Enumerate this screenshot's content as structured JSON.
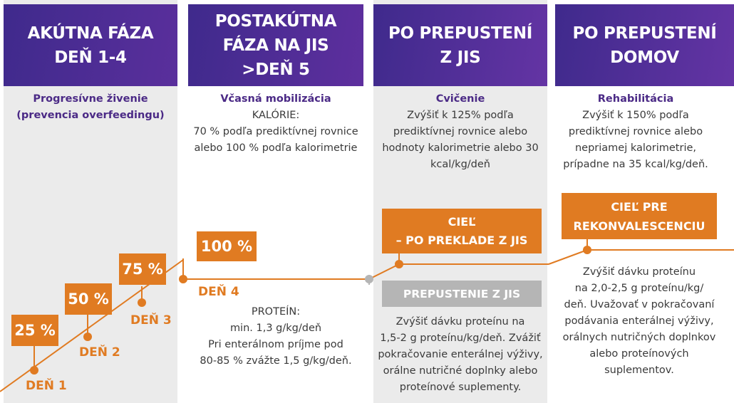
{
  "columns": [
    {
      "header": [
        "AKÚTNA FÁZA",
        "DEŇ 1-4"
      ],
      "title": "Progresívne živenie",
      "title2": "(prevencia overfeedingu)"
    },
    {
      "header": [
        "POSTAKÚTNA",
        "FÁZA NA JIS",
        ">DEŇ 5"
      ],
      "title": "Včasná mobilizácia",
      "body": [
        "KALÓRIE:",
        "70 % podľa prediktívnej rovnice",
        "alebo 100 % podľa kalorimetrie"
      ],
      "lower": [
        "PROTEÍN:",
        "min. 1,3 g/kg/deň",
        "Pri enterálnom príjme pod",
        "80-85 % zvážte 1,5 g/kg/deň."
      ]
    },
    {
      "header": [
        "PO PREPUSTENÍ",
        "Z JIS"
      ],
      "title": "Cvičenie",
      "body": [
        "Zvýšiť k 125% podľa",
        "prediktívnej rovnice alebo",
        "hodnoty kalorimetrie alebo 30",
        "kcal/kg/deň"
      ],
      "lower": [
        "Zvýšiť dávku proteínu na",
        "1,5-2 g proteínu/kg/deň. Zvážiť",
        "pokračovanie enterálnej výživy,",
        "orálne nutričné doplnky alebo",
        "proteínové suplementy."
      ]
    },
    {
      "header": [
        "PO PREPUSTENÍ",
        "DOMOV"
      ],
      "title": "Rehabilitácia",
      "body": [
        "Zvýšiť k 150% podľa",
        "prediktívnej rovnice alebo",
        "nepriamej kalorimetrie,",
        "prípadne na 35 kcal/kg/deň."
      ],
      "lower": [
        "Zvýšiť dávku proteínu",
        "na 2,0-2,5 g proteínu/kg/",
        "deň. Uvažovať v pokračovaní",
        "podávania enterálnej výživy,",
        "orálnych nutričných doplnkov",
        "alebo proteínových suplementov."
      ]
    }
  ],
  "badges": {
    "p25": "25 %",
    "p50": "50 %",
    "p75": "75 %",
    "p100": "100 %",
    "goal_icu": [
      "CIEĽ",
      "– PO PREKLADE Z JIS"
    ],
    "discharge": "PREPUSTENIE Z JIS",
    "goal_recovery": [
      "CIEĽ PRE",
      "REKONVALESCENCIU"
    ]
  },
  "days": {
    "d1": "DEŇ 1",
    "d2": "DEŇ 2",
    "d3": "DEŇ 3",
    "d4": "DEŇ 4"
  },
  "colors": {
    "header_purple": "#4a2d8f",
    "header_purple_light": "#6a3aa6",
    "orange": "#e07b22",
    "grey_bg": "#ebebeb",
    "grey_badge": "#b5b5b5",
    "title_purple": "#4b2a86"
  }
}
